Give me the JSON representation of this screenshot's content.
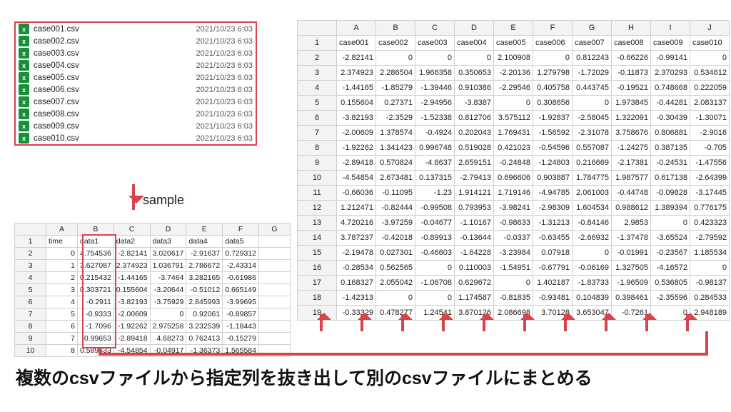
{
  "files": {
    "items": [
      {
        "name": "case001.csv",
        "time": "2021/10/23 6:03"
      },
      {
        "name": "case002.csv",
        "time": "2021/10/23 6:03"
      },
      {
        "name": "case003.csv",
        "time": "2021/10/23 6:03"
      },
      {
        "name": "case004.csv",
        "time": "2021/10/23 6:03"
      },
      {
        "name": "case005.csv",
        "time": "2021/10/23 6:03"
      },
      {
        "name": "case006.csv",
        "time": "2021/10/23 6:03"
      },
      {
        "name": "case007.csv",
        "time": "2021/10/23 6:03"
      },
      {
        "name": "case008.csv",
        "time": "2021/10/23 6:03"
      },
      {
        "name": "case009.csv",
        "time": "2021/10/23 6:03"
      },
      {
        "name": "case010.csv",
        "time": "2021/10/23 6:03"
      }
    ],
    "icon_color": "#1a8f3a"
  },
  "labels": {
    "sample": "sample",
    "caption": "複数のcsvファイルから指定列を抜き出して別のcsvファイルにまとめる"
  },
  "small_sheet": {
    "columns": [
      "",
      "A",
      "B",
      "C",
      "D",
      "E",
      "F",
      "G"
    ],
    "header_row": [
      "time",
      "data1",
      "data2",
      "data3",
      "data4",
      "data5",
      ""
    ],
    "rows": [
      [
        "0",
        "4.754536",
        "-2.82141",
        "3.020617",
        "-2.91637",
        "0.729312",
        ""
      ],
      [
        "1",
        "3.627087",
        "2.374923",
        "1.036791",
        "2.786672",
        "-2.43314",
        ""
      ],
      [
        "2",
        "0.215432",
        "-1.44165",
        "-3.7464",
        "3.282165",
        "-0.61986",
        ""
      ],
      [
        "3",
        "0.303721",
        "0.155604",
        "-3.20644",
        "-0.51012",
        "0.665149",
        ""
      ],
      [
        "4",
        "-0.2911",
        "-3.82193",
        "-3.75929",
        "2.845993",
        "-3.99695",
        ""
      ],
      [
        "5",
        "-0.9333",
        "-2.00609",
        "0",
        "0.92061",
        "-0.89857",
        ""
      ],
      [
        "6",
        "-1.7096",
        "-1.92262",
        "2.975258",
        "3.232539",
        "-1.18443",
        ""
      ],
      [
        "7",
        "-0.99653",
        "-2.89418",
        "4.68273",
        "0.762413",
        "-0.15279",
        ""
      ],
      [
        "8",
        "0.589633",
        "-4.54854",
        "-0.04917",
        "-1.36373",
        "1.565584",
        ""
      ]
    ]
  },
  "large_sheet": {
    "columns": [
      "",
      "A",
      "B",
      "C",
      "D",
      "E",
      "F",
      "G",
      "H",
      "I",
      "J"
    ],
    "header_row": [
      "case001",
      "case002",
      "case003",
      "case004",
      "case005",
      "case006",
      "case007",
      "case008",
      "case009",
      "case010"
    ],
    "rows": [
      [
        "-2.82141",
        "0",
        "0",
        "0",
        "2.100908",
        "0",
        "0.812243",
        "-0.66226",
        "-0.99141",
        "0"
      ],
      [
        "2.374923",
        "2.286504",
        "1.966358",
        "0.350653",
        "-2.20136",
        "1.279798",
        "-1.72029",
        "-0.11873",
        "2.370293",
        "0.534612"
      ],
      [
        "-1.44165",
        "-1.85279",
        "-1.39446",
        "0.910386",
        "-2.29546",
        "0.405758",
        "0.443745",
        "-0.19521",
        "0.748668",
        "0.222059"
      ],
      [
        "0.155604",
        "0.27371",
        "-2.94956",
        "-3.8387",
        "0",
        "0.308656",
        "0",
        "1.973845",
        "-0.44281",
        "2.083137"
      ],
      [
        "-3.82193",
        "-2.3529",
        "-1.52338",
        "0.812706",
        "3.575112",
        "-1.92837",
        "-2.58045",
        "1.322091",
        "-0.30439",
        "-1.30071"
      ],
      [
        "-2.00609",
        "1.378574",
        "-0.4924",
        "0.202043",
        "1.769431",
        "-1.56592",
        "-2.31078",
        "3.758676",
        "0.806881",
        "-2.9016"
      ],
      [
        "-1.92262",
        "1.341423",
        "0.996748",
        "0.519028",
        "0.421023",
        "-0.54596",
        "0.557087",
        "-1.24275",
        "0.387135",
        "-0.705"
      ],
      [
        "-2.89418",
        "0.570824",
        "-4.6637",
        "2.659151",
        "-0.24848",
        "-1.24803",
        "0.216669",
        "-2.17381",
        "-0.24531",
        "-1.47556"
      ],
      [
        "-4.54854",
        "2.673481",
        "0.137315",
        "-2.79413",
        "0.696606",
        "0.903887",
        "1.784775",
        "1.987577",
        "0.617138",
        "-2.64399"
      ],
      [
        "-0.66036",
        "-0.11095",
        "-1.23",
        "1.914121",
        "1.719146",
        "-4.94785",
        "2.061003",
        "-0.44748",
        "-0.09828",
        "-3.17445"
      ],
      [
        "1.212471",
        "-0.82444",
        "-0.99508",
        "0.793953",
        "-3.98241",
        "-2.98309",
        "1.604534",
        "0.988612",
        "1.389394",
        "0.776175"
      ],
      [
        "4.720216",
        "-3.97259",
        "-0.04677",
        "-1.10167",
        "-0.98633",
        "-1.31213",
        "-0.84146",
        "2.9853",
        "0",
        "0.423323"
      ],
      [
        "3.787237",
        "-0.42018",
        "-0.89913",
        "-0.13644",
        "-0.0337",
        "-0.63455",
        "-2.66932",
        "-1.37478",
        "-3.65524",
        "-2.79592"
      ],
      [
        "-2.19478",
        "0.027301",
        "-0.46603",
        "-1.64228",
        "-3.23984",
        "0.07918",
        "0",
        "-0.01991",
        "-0.23567",
        "1.185534"
      ],
      [
        "-0.28534",
        "0.562565",
        "0",
        "0.110003",
        "-1.54951",
        "-0.67791",
        "-0.06169",
        "1.327505",
        "-4.16572",
        "0"
      ],
      [
        "0.168327",
        "2.055042",
        "-1.06708",
        "0.629672",
        "0",
        "1.402187",
        "-1.83733",
        "-1.96509",
        "0.536805",
        "-0.98137"
      ],
      [
        "-1.42313",
        "0",
        "0",
        "1.174587",
        "-0.81835",
        "-0.93481",
        "0.104839",
        "0.398461",
        "-2.35596",
        "0.284533"
      ],
      [
        "-0.33329",
        "0.478277",
        "1.24541",
        "3.870126",
        "2.086698",
        "3.70128",
        "3.653047",
        "-0.7261",
        "0",
        "2.948189"
      ]
    ]
  },
  "style": {
    "accent": "#d9434a",
    "grid_border": "#d0d0d0",
    "header_bg": "#f3f3f3",
    "text_color": "#222222"
  }
}
